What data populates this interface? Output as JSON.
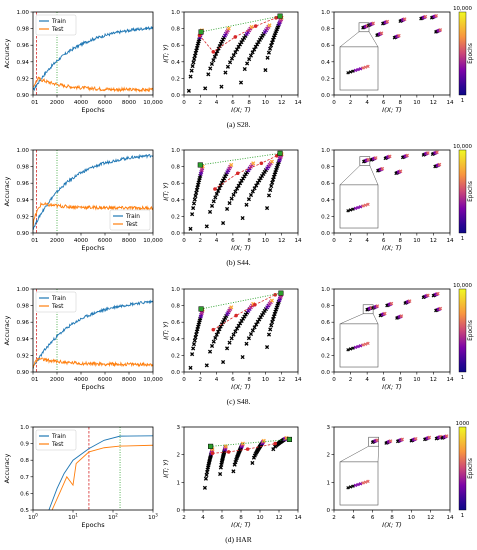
{
  "captions": [
    "(a) S28.",
    "(b) S44.",
    "(c) S48.",
    "(d) HAR"
  ],
  "colors": {
    "train": "#1f77b4",
    "test": "#ff7f0e",
    "red": "#d62728",
    "green": "#2ca02c"
  },
  "colorbar_label": "Epochs",
  "chart_data": [
    {
      "type": "line",
      "title": "",
      "xlabel": "Epochs",
      "ylabel": "Accuracy",
      "xlim": [
        0,
        10000
      ],
      "ylim": [
        0.9,
        1.0
      ],
      "xticks": [
        "0",
        "2000",
        "4000",
        "6000",
        "8000",
        "10,000"
      ],
      "yticks": [
        "0.90",
        "0.92",
        "0.94",
        "0.96",
        "0.98",
        "1.00"
      ],
      "extra_xtick": "1",
      "legend": "top-left",
      "vlines": {
        "red": 300,
        "green": 2000
      },
      "series": [
        {
          "name": "Train",
          "start": 0.905,
          "end": 0.985,
          "k": 3.0
        },
        {
          "name": "Test",
          "start": 0.905,
          "peak": 0.92,
          "peak_x": 450,
          "end": 0.906
        }
      ]
    },
    {
      "type": "scatter",
      "title": "",
      "xlabel": "I(X; T)",
      "ylabel": "I(T; Y)",
      "xlim": [
        0,
        14
      ],
      "ylim": [
        0,
        1.0
      ],
      "xticks": [
        "0",
        "2",
        "4",
        "6",
        "8",
        "10",
        "12",
        "14"
      ],
      "yticks": [
        "0.0",
        "0.2",
        "0.4",
        "0.6",
        "0.8",
        "1.0"
      ],
      "trajectories": [
        [
          0.6,
          0.05,
          2.2,
          0.78
        ],
        [
          2.6,
          0.08,
          5.5,
          0.8
        ],
        [
          4.6,
          0.1,
          8.3,
          0.82
        ],
        [
          7.0,
          0.15,
          10.5,
          0.84
        ],
        [
          10.0,
          0.3,
          12.0,
          0.93
        ]
      ],
      "red_points": [
        [
          1.9,
          0.72
        ],
        [
          3.6,
          0.52
        ],
        [
          6.3,
          0.7
        ],
        [
          8.8,
          0.83
        ],
        [
          11.3,
          0.93
        ]
      ],
      "green_points": [
        [
          2.1,
          0.76
        ],
        [
          11.8,
          0.95
        ]
      ]
    },
    {
      "type": "scatter",
      "title": "",
      "xlabel": "I(X; T)",
      "ylabel": "",
      "xlim": [
        0,
        14
      ],
      "ylim": [
        0,
        1.0
      ],
      "colorbar": [
        "1",
        "10,000"
      ],
      "xticks": [
        "0",
        "2",
        "4",
        "6",
        "8",
        "10",
        "12",
        "14"
      ],
      "yticks": [
        "0.0",
        "0.2",
        "0.4",
        "0.6",
        "0.8",
        "1.0"
      ],
      "points": [
        [
          3.5,
          0.81
        ],
        [
          4.2,
          0.84
        ],
        [
          5.2,
          0.72
        ],
        [
          5.9,
          0.86
        ],
        [
          7.3,
          0.69
        ],
        [
          8.0,
          0.89
        ],
        [
          10.5,
          0.92
        ],
        [
          11.8,
          0.93
        ],
        [
          12.3,
          0.76
        ]
      ]
    },
    {
      "type": "line",
      "title": "",
      "xlabel": "Epochs",
      "ylabel": "Accuracy",
      "xlim": [
        0,
        10000
      ],
      "ylim": [
        0.9,
        1.0
      ],
      "xticks": [
        "0",
        "2000",
        "4000",
        "6000",
        "8000",
        "10,000"
      ],
      "yticks": [
        "0.90",
        "0.92",
        "0.94",
        "0.96",
        "0.98",
        "1.00"
      ],
      "extra_xtick": "1",
      "legend": "bottom-right",
      "vlines": {
        "red": 300,
        "green": 2000
      },
      "series": [
        {
          "name": "Train",
          "start": 0.905,
          "end": 0.997,
          "k": 3.3
        },
        {
          "name": "Test",
          "start": 0.905,
          "peak": 0.935,
          "peak_x": 700,
          "end": 0.93
        }
      ]
    },
    {
      "type": "scatter",
      "title": "",
      "xlabel": "I(X; T)",
      "ylabel": "I(T; Y)",
      "xlim": [
        0,
        14
      ],
      "ylim": [
        0,
        1.0
      ],
      "xticks": [
        "0",
        "2",
        "4",
        "6",
        "8",
        "10",
        "12",
        "14"
      ],
      "yticks": [
        "0.0",
        "0.2",
        "0.4",
        "0.6",
        "0.8",
        "1.0"
      ],
      "trajectories": [
        [
          0.8,
          0.05,
          2.3,
          0.8
        ],
        [
          2.8,
          0.08,
          5.8,
          0.82
        ],
        [
          4.8,
          0.12,
          8.5,
          0.84
        ],
        [
          7.2,
          0.18,
          10.8,
          0.86
        ],
        [
          10.2,
          0.3,
          12.0,
          0.95
        ]
      ],
      "red_points": [
        [
          3.8,
          0.53
        ],
        [
          6.6,
          0.72
        ],
        [
          9.5,
          0.84
        ],
        [
          11.4,
          0.93
        ]
      ],
      "green_points": [
        [
          2.0,
          0.82
        ],
        [
          11.8,
          0.96
        ]
      ]
    },
    {
      "type": "scatter",
      "title": "",
      "xlabel": "I(X; T)",
      "ylabel": "",
      "xlim": [
        0,
        14
      ],
      "ylim": [
        0,
        1.0
      ],
      "colorbar": [
        "1",
        "10,000"
      ],
      "xticks": [
        "0",
        "2",
        "4",
        "6",
        "8",
        "10",
        "12",
        "14"
      ],
      "yticks": [
        "0.0",
        "0.2",
        "0.4",
        "0.6",
        "0.8",
        "1.0"
      ],
      "points": [
        [
          3.6,
          0.86
        ],
        [
          4.5,
          0.88
        ],
        [
          5.3,
          0.75
        ],
        [
          6.2,
          0.9
        ],
        [
          7.5,
          0.72
        ],
        [
          8.3,
          0.91
        ],
        [
          10.8,
          0.94
        ],
        [
          11.9,
          0.95
        ],
        [
          12.2,
          0.8
        ]
      ]
    },
    {
      "type": "line",
      "title": "",
      "xlabel": "Epochs",
      "ylabel": "Accuracy",
      "xlim": [
        0,
        10000
      ],
      "ylim": [
        0.9,
        1.0
      ],
      "xticks": [
        "0",
        "2000",
        "4000",
        "6000",
        "8000",
        "10,000"
      ],
      "yticks": [
        "0.90",
        "0.92",
        "0.94",
        "0.96",
        "0.98",
        "1.00"
      ],
      "extra_xtick": "1",
      "legend": "top-left",
      "vlines": {
        "red": 300,
        "green": 2000
      },
      "series": [
        {
          "name": "Train",
          "start": 0.905,
          "end": 0.989,
          "k": 3.0
        },
        {
          "name": "Test",
          "start": 0.905,
          "peak": 0.916,
          "peak_x": 500,
          "end": 0.909
        }
      ]
    },
    {
      "type": "scatter",
      "title": "",
      "xlabel": "I(X; T)",
      "ylabel": "I(T; Y)",
      "xlim": [
        0,
        14
      ],
      "ylim": [
        0,
        1.0
      ],
      "xticks": [
        "0",
        "2",
        "4",
        "6",
        "8",
        "10",
        "12",
        "14"
      ],
      "yticks": [
        "0.0",
        "0.2",
        "0.4",
        "0.6",
        "0.8",
        "1.0"
      ],
      "trajectories": [
        [
          0.8,
          0.05,
          2.3,
          0.75
        ],
        [
          2.8,
          0.08,
          5.8,
          0.78
        ],
        [
          4.8,
          0.12,
          8.5,
          0.82
        ],
        [
          7.2,
          0.18,
          10.8,
          0.86
        ],
        [
          10.2,
          0.3,
          12.0,
          0.94
        ]
      ],
      "red_points": [
        [
          3.6,
          0.51
        ],
        [
          6.4,
          0.68
        ],
        [
          8.7,
          0.81
        ],
        [
          11.2,
          0.93
        ]
      ],
      "green_points": [
        [
          2.1,
          0.76
        ],
        [
          11.9,
          0.95
        ]
      ]
    },
    {
      "type": "scatter",
      "title": "",
      "xlabel": "I(X; T)",
      "ylabel": "",
      "xlim": [
        0,
        14
      ],
      "ylim": [
        0,
        1.0
      ],
      "colorbar": [
        "1",
        "10,000"
      ],
      "xticks": [
        "0",
        "2",
        "4",
        "6",
        "8",
        "10",
        "12",
        "14"
      ],
      "yticks": [
        "0.0",
        "0.2",
        "0.4",
        "0.6",
        "0.8",
        "1.0"
      ],
      "points": [
        [
          4.0,
          0.75
        ],
        [
          4.7,
          0.77
        ],
        [
          5.6,
          0.68
        ],
        [
          6.4,
          0.8
        ],
        [
          7.6,
          0.65
        ],
        [
          8.6,
          0.83
        ],
        [
          10.8,
          0.9
        ],
        [
          12.0,
          0.92
        ],
        [
          12.3,
          0.74
        ]
      ]
    },
    {
      "type": "line",
      "title": "",
      "xlabel": "Epochs",
      "ylabel": "Accuracy",
      "xscale": "log",
      "xlim": [
        1,
        1000
      ],
      "ylim": [
        0.5,
        1.0
      ],
      "xticks": [
        "10^0",
        "10^1",
        "10^2",
        "10^3"
      ],
      "yticks": [
        "0.5",
        "0.6",
        "0.7",
        "0.8",
        "0.9",
        "1.0"
      ],
      "legend": "top-left",
      "vlines": {
        "red": 25,
        "green": 150
      },
      "series": [
        {
          "name": "Train",
          "points": [
            [
              2.5,
              0.5
            ],
            [
              4,
              0.63
            ],
            [
              6,
              0.72
            ],
            [
              10,
              0.8
            ],
            [
              25,
              0.87
            ],
            [
              60,
              0.92
            ],
            [
              150,
              0.945
            ],
            [
              1000,
              0.947
            ]
          ]
        },
        {
          "name": "Test",
          "points": [
            [
              3,
              0.5
            ],
            [
              5,
              0.62
            ],
            [
              7,
              0.7
            ],
            [
              10,
              0.65
            ],
            [
              12,
              0.78
            ],
            [
              25,
              0.85
            ],
            [
              60,
              0.875
            ],
            [
              150,
              0.885
            ],
            [
              1000,
              0.89
            ]
          ]
        }
      ]
    },
    {
      "type": "scatter",
      "title": "",
      "xlabel": "I(X; T)",
      "ylabel": "I(T; Y)",
      "xlim": [
        2,
        14
      ],
      "ylim": [
        0,
        3
      ],
      "xticks": [
        "2",
        "4",
        "6",
        "8",
        "10",
        "12",
        "14"
      ],
      "yticks": [
        "0",
        "1",
        "2",
        "3"
      ],
      "trajectories": [
        [
          4.2,
          0.8,
          5.0,
          2.2
        ],
        [
          5.8,
          1.3,
          6.4,
          2.3
        ],
        [
          7.2,
          1.4,
          8.2,
          2.4
        ],
        [
          9.2,
          1.7,
          10.4,
          2.5
        ],
        [
          11.4,
          2.2,
          12.8,
          2.6
        ]
      ],
      "red_points": [
        [
          5.0,
          2.05
        ],
        [
          6.7,
          2.1
        ],
        [
          8.7,
          2.2
        ],
        [
          11.6,
          2.4
        ]
      ],
      "green_points": [
        [
          4.8,
          2.3
        ],
        [
          13.1,
          2.55
        ]
      ]
    },
    {
      "type": "scatter",
      "title": "",
      "xlabel": "I(X; T)",
      "ylabel": "",
      "xlim": [
        2,
        14
      ],
      "ylim": [
        0,
        3
      ],
      "colorbar": [
        "1",
        "1000"
      ],
      "xticks": [
        "2",
        "4",
        "6",
        "8",
        "10",
        "12",
        "14"
      ],
      "yticks": [
        "0",
        "1",
        "2",
        "3"
      ],
      "points": [
        [
          6.0,
          2.45
        ],
        [
          7.4,
          2.42
        ],
        [
          8.6,
          2.48
        ],
        [
          10.0,
          2.5
        ],
        [
          11.4,
          2.55
        ],
        [
          12.6,
          2.58
        ],
        [
          13.2,
          2.6
        ]
      ]
    }
  ]
}
